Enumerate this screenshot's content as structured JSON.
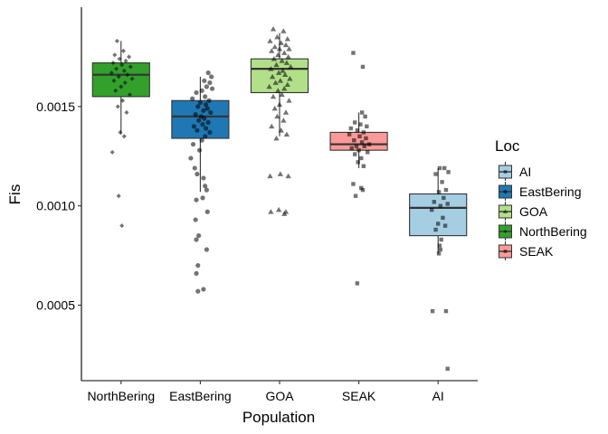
{
  "chart_data": {
    "type": "boxplot",
    "title": "",
    "xlabel": "Population",
    "ylabel": "Fis",
    "ylim": [
      0.00012,
      0.002
    ],
    "yticks": [
      0.0005,
      0.001,
      0.0015
    ],
    "ytick_labels": [
      "0.0005",
      "0.0010",
      "0.0015"
    ],
    "grid": false,
    "legend_position": "right",
    "legend_title": "Loc",
    "categories": [
      "NorthBering",
      "EastBering",
      "GOA",
      "SEAK",
      "AI"
    ],
    "legend": [
      {
        "name": "AI",
        "color": "#a6cee3"
      },
      {
        "name": "EastBering",
        "color": "#1f78b4"
      },
      {
        "name": "GOA",
        "color": "#b2df8a"
      },
      {
        "name": "NorthBering",
        "color": "#33a02c"
      },
      {
        "name": "SEAK",
        "color": "#fb9a99"
      }
    ],
    "boxes": [
      {
        "name": "NorthBering",
        "color": "#33a02c",
        "shape": "diamond",
        "min": 0.00136,
        "q1": 0.00155,
        "median": 0.00166,
        "q3": 0.00172,
        "max": 0.00183,
        "points": [
          [
            -0.05,
            0.00183
          ],
          [
            0.03,
            0.00178
          ],
          [
            -0.08,
            0.00176
          ],
          [
            0.1,
            0.00175
          ],
          [
            -0.02,
            0.00174
          ],
          [
            0.06,
            0.00173
          ],
          [
            -0.1,
            0.00172
          ],
          [
            0.01,
            0.00171
          ],
          [
            0.12,
            0.0017
          ],
          [
            -0.06,
            0.00169
          ],
          [
            0.04,
            0.00168
          ],
          [
            -0.12,
            0.00167
          ],
          [
            0.08,
            0.00166
          ],
          [
            -0.03,
            0.00165
          ],
          [
            0.14,
            0.00164
          ],
          [
            -0.09,
            0.00163
          ],
          [
            0.05,
            0.00162
          ],
          [
            0.0,
            0.0016
          ],
          [
            -0.07,
            0.00158
          ],
          [
            0.11,
            0.00156
          ],
          [
            0.02,
            0.00153
          ],
          [
            -0.04,
            0.0015
          ],
          [
            0.07,
            0.00147
          ],
          [
            -0.01,
            0.00137
          ],
          [
            0.04,
            0.00135
          ],
          [
            -0.11,
            0.00127
          ],
          [
            -0.03,
            0.00105
          ],
          [
            0.01,
            0.0009
          ]
        ]
      },
      {
        "name": "EastBering",
        "color": "#1f78b4",
        "shape": "circle",
        "min": 0.00107,
        "q1": 0.00134,
        "median": 0.00145,
        "q3": 0.00153,
        "max": 0.00165,
        "points": [
          [
            0.1,
            0.00167
          ],
          [
            0.14,
            0.00165
          ],
          [
            0.05,
            0.00163
          ],
          [
            0.12,
            0.00162
          ],
          [
            0.08,
            0.0016
          ],
          [
            0.15,
            0.00159
          ],
          [
            0.02,
            0.00158
          ],
          [
            -0.05,
            0.00157
          ],
          [
            0.06,
            0.00155
          ],
          [
            -0.1,
            0.00154
          ],
          [
            0.11,
            0.00153
          ],
          [
            0.0,
            0.00152
          ],
          [
            0.07,
            0.00151
          ],
          [
            -0.03,
            0.0015
          ],
          [
            0.09,
            0.00149
          ],
          [
            0.04,
            0.00148
          ],
          [
            0.13,
            0.00147
          ],
          [
            -0.06,
            0.00146
          ],
          [
            0.01,
            0.00145
          ],
          [
            0.05,
            0.00144
          ],
          [
            -0.02,
            0.00143
          ],
          [
            0.1,
            0.00142
          ],
          [
            0.03,
            0.00141
          ],
          [
            -0.08,
            0.0014
          ],
          [
            0.07,
            0.00139
          ],
          [
            -0.04,
            0.00138
          ],
          [
            0.12,
            0.00137
          ],
          [
            0.06,
            0.00135
          ],
          [
            0.02,
            0.00133
          ],
          [
            -0.09,
            0.00131
          ],
          [
            -0.01,
            0.00128
          ],
          [
            -0.12,
            0.00124
          ],
          [
            -0.07,
            0.00119
          ],
          [
            -0.04,
            0.00116
          ],
          [
            0.04,
            0.00114
          ],
          [
            0.06,
            0.0011
          ],
          [
            0.08,
            0.00108
          ],
          [
            0.03,
            0.00104
          ],
          [
            -0.05,
            0.00103
          ],
          [
            0.09,
            0.00097
          ],
          [
            -0.06,
            0.00093
          ],
          [
            -0.02,
            0.00085
          ],
          [
            -0.05,
            0.00083
          ],
          [
            0.08,
            0.00078
          ],
          [
            -0.03,
            0.0007
          ],
          [
            -0.05,
            0.00066
          ],
          [
            0.04,
            0.00058
          ],
          [
            -0.03,
            0.00057
          ]
        ]
      },
      {
        "name": "GOA",
        "color": "#b2df8a",
        "shape": "triangle",
        "min": 0.00135,
        "q1": 0.00157,
        "median": 0.00169,
        "q3": 0.00174,
        "max": 0.00187,
        "points": [
          [
            -0.08,
            0.00189
          ],
          [
            0.05,
            0.00188
          ],
          [
            -0.03,
            0.00185
          ],
          [
            0.1,
            0.00184
          ],
          [
            -0.12,
            0.00183
          ],
          [
            0.02,
            0.00182
          ],
          [
            0.08,
            0.00181
          ],
          [
            -0.06,
            0.0018
          ],
          [
            0.12,
            0.00179
          ],
          [
            0.0,
            0.00179
          ],
          [
            -0.1,
            0.00178
          ],
          [
            0.06,
            0.00177
          ],
          [
            -0.02,
            0.00176
          ],
          [
            0.11,
            0.00175
          ],
          [
            -0.07,
            0.00174
          ],
          [
            0.03,
            0.00173
          ],
          [
            0.09,
            0.00172
          ],
          [
            -0.04,
            0.00171
          ],
          [
            0.14,
            0.0017
          ],
          [
            -0.11,
            0.00169
          ],
          [
            0.04,
            0.00168
          ],
          [
            -0.01,
            0.00167
          ],
          [
            0.07,
            0.00166
          ],
          [
            -0.09,
            0.00165
          ],
          [
            0.13,
            0.00164
          ],
          [
            0.01,
            0.00163
          ],
          [
            -0.05,
            0.00162
          ],
          [
            0.1,
            0.00161
          ],
          [
            -0.13,
            0.0016
          ],
          [
            0.06,
            0.00159
          ],
          [
            -0.02,
            0.00158
          ],
          [
            0.03,
            0.00156
          ],
          [
            -0.08,
            0.00155
          ],
          [
            0.12,
            0.00153
          ],
          [
            0.0,
            0.00151
          ],
          [
            -0.06,
            0.00149
          ],
          [
            0.08,
            0.00147
          ],
          [
            -0.03,
            0.00145
          ],
          [
            0.05,
            0.00143
          ],
          [
            -0.1,
            0.0014
          ],
          [
            0.02,
            0.00138
          ],
          [
            0.09,
            0.00136
          ],
          [
            -0.04,
            0.00134
          ],
          [
            0.01,
            0.00116
          ],
          [
            0.11,
            0.00115
          ],
          [
            -0.12,
            0.00115
          ],
          [
            -0.01,
            0.00098
          ],
          [
            -0.11,
            0.00097
          ],
          [
            0.06,
            0.00096
          ],
          [
            0.08,
            0.00097
          ]
        ]
      },
      {
        "name": "SEAK",
        "color": "#fb9a99",
        "shape": "square",
        "min": 0.00119,
        "q1": 0.00128,
        "median": 0.00131,
        "q3": 0.00137,
        "max": 0.00147,
        "points": [
          [
            -0.07,
            0.00177
          ],
          [
            0.05,
            0.0017
          ],
          [
            0.04,
            0.00147
          ],
          [
            0.08,
            0.00145
          ],
          [
            -0.05,
            0.00142
          ],
          [
            0.02,
            0.00141
          ],
          [
            0.1,
            0.0014
          ],
          [
            -0.1,
            0.00139
          ],
          [
            -0.02,
            0.00138
          ],
          [
            0.06,
            0.00137
          ],
          [
            -0.12,
            0.00136
          ],
          [
            0.01,
            0.00135
          ],
          [
            0.09,
            0.00134
          ],
          [
            -0.06,
            0.00133
          ],
          [
            0.04,
            0.00132
          ],
          [
            0.13,
            0.00131
          ],
          [
            -0.03,
            0.0013
          ],
          [
            0.07,
            0.0013
          ],
          [
            -0.09,
            0.00129
          ],
          [
            0.0,
            0.00128
          ],
          [
            0.11,
            0.00127
          ],
          [
            -0.05,
            0.00126
          ],
          [
            0.03,
            0.00124
          ],
          [
            -0.01,
            0.00122
          ],
          [
            0.06,
            0.0012
          ],
          [
            -0.07,
            0.00111
          ],
          [
            0.03,
            0.00109
          ],
          [
            0.05,
            0.00108
          ],
          [
            -0.04,
            0.00105
          ],
          [
            -0.02,
            0.00061
          ]
        ]
      },
      {
        "name": "AI",
        "color": "#a6cee3",
        "shape": "square",
        "min": 0.00076,
        "q1": 0.00085,
        "median": 0.00099,
        "q3": 0.00106,
        "max": 0.00119,
        "points": [
          [
            0.02,
            0.00119
          ],
          [
            0.08,
            0.00119
          ],
          [
            0.13,
            0.00117
          ],
          [
            -0.03,
            0.00116
          ],
          [
            0.05,
            0.00112
          ],
          [
            0.1,
            0.00108
          ],
          [
            0.01,
            0.00107
          ],
          [
            0.07,
            0.00104
          ],
          [
            -0.05,
            0.00102
          ],
          [
            0.12,
            0.00101
          ],
          [
            0.03,
            0.001
          ],
          [
            -0.08,
            0.00098
          ],
          [
            0.06,
            0.00094
          ],
          [
            0.0,
            0.00091
          ],
          [
            0.09,
            0.0009
          ],
          [
            -0.03,
            0.00088
          ],
          [
            0.04,
            0.00083
          ],
          [
            0.02,
            0.0008
          ],
          [
            0.03,
            0.00078
          ],
          [
            0.01,
            0.00076
          ],
          [
            -0.07,
            0.00047
          ],
          [
            0.1,
            0.00047
          ],
          [
            0.12,
            0.00018
          ]
        ]
      }
    ]
  }
}
